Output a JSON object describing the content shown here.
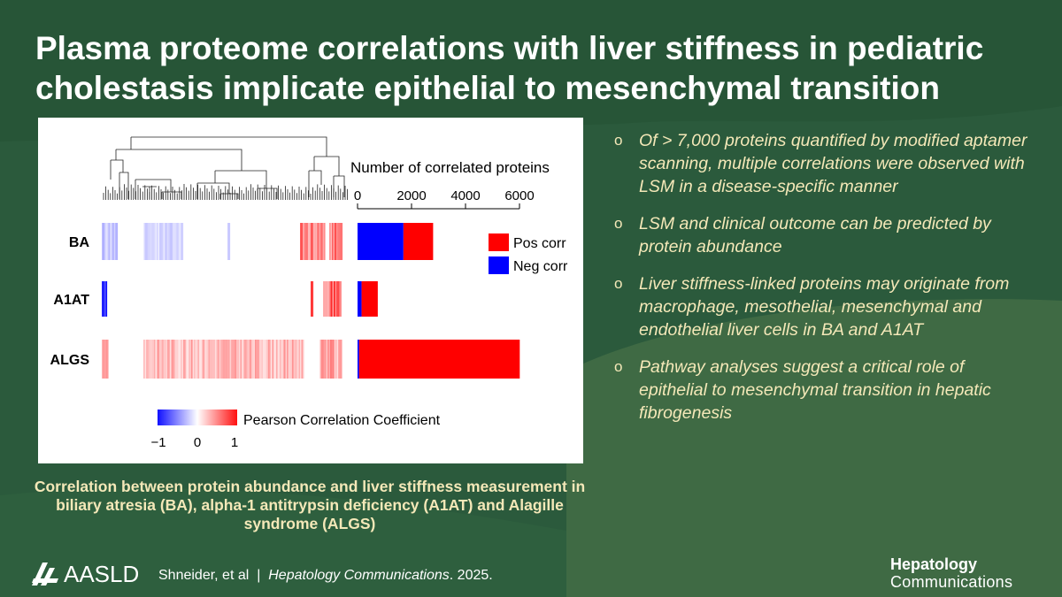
{
  "slide": {
    "title": "Plasma proteome correlations with liver stiffness in pediatric cholestasis implicate epithelial to mesenchymal transition",
    "caption": "Correlation between protein abundance and liver stiffness measurement in biliary atresia (BA), alpha-1 antitrypsin deficiency (A1AT) and Alagille syndrome (ALGS)",
    "bullet_marker": "o",
    "bullets": [
      "Of > 7,000 proteins quantified by modified aptamer scanning, multiple correlations were observed with LSM in a disease-specific manner",
      "LSM and clinical outcome can be predicted by protein abundance",
      "Liver stiffness-linked proteins may originate from macrophage, mesothelial, mesenchymal and endothelial liver cells in BA and A1AT",
      "Pathway analyses suggest a critical role of epithelial to mesenchymal transition in hepatic fibrogenesis"
    ],
    "footer": {
      "logo": "AASLD",
      "authors": "Shneider, et al",
      "separator": "|",
      "journal": "Hepatology Communications",
      "year": ". 2025.",
      "brand_line1": "Hepatology",
      "brand_line2": "Communications"
    }
  },
  "figure": {
    "bar_title": "Number of correlated proteins",
    "bar_ticks": [
      "0",
      "2000",
      "4000",
      "6000"
    ],
    "bar_tick_values": [
      0,
      2000,
      4000,
      6000
    ],
    "bar_xlim": [
      0,
      6500
    ],
    "rows": [
      {
        "label": "BA",
        "neg": 1700,
        "pos": 1100
      },
      {
        "label": "A1AT",
        "neg": 150,
        "pos": 600
      },
      {
        "label": "ALGS",
        "neg": 60,
        "pos": 5950
      }
    ],
    "legend": [
      {
        "label": "Pos corr",
        "color": "#ff0000"
      },
      {
        "label": "Neg corr",
        "color": "#0000ff"
      }
    ],
    "colorbar_title": "Pearson Correlation Coefficient",
    "colorbar_ticks": [
      "−1",
      "0",
      "1"
    ],
    "colors": {
      "positive": "#ff0000",
      "negative": "#0000ff"
    }
  }
}
